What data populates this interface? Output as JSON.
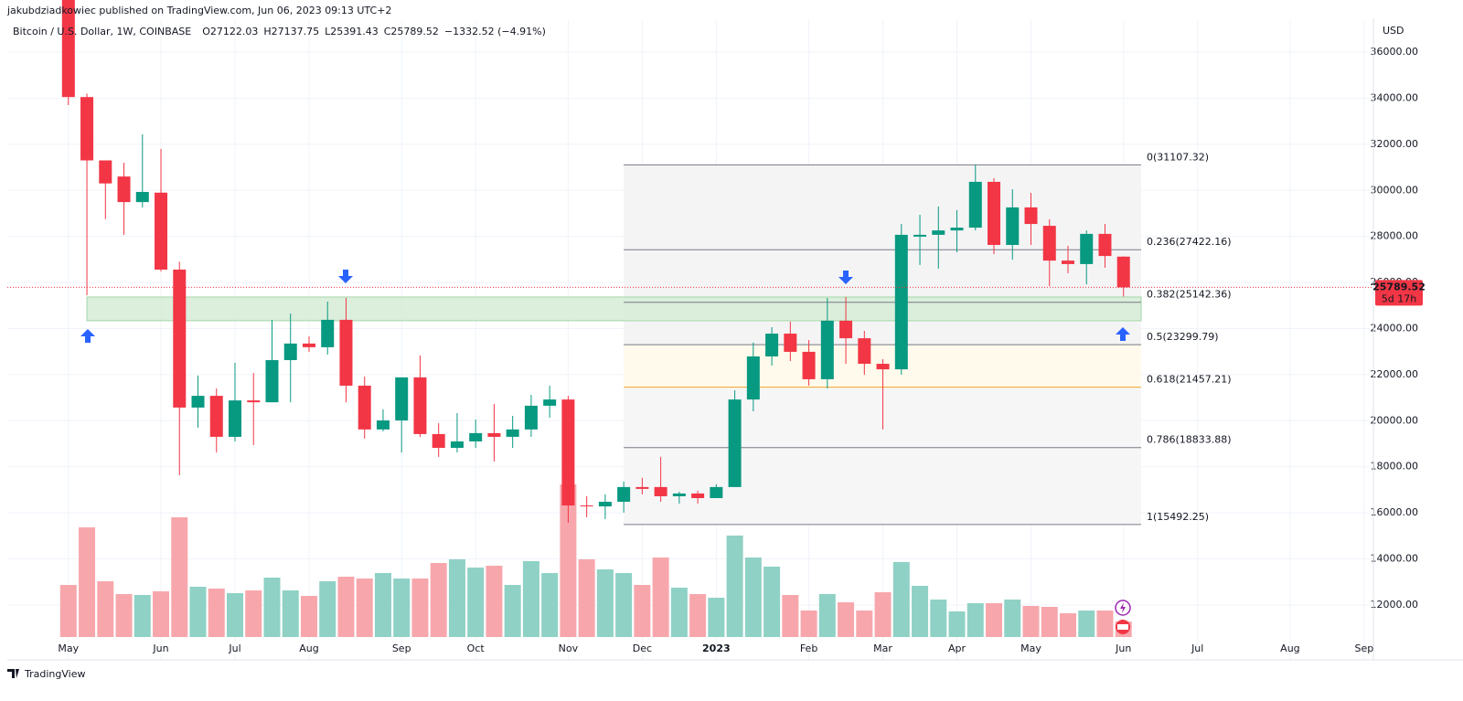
{
  "header": {
    "publisher": "jakubdziadkowiec published on TradingView.com, Jun 06, 2023 09:13 UTC+2",
    "brand": "TradingView"
  },
  "chart_data": {
    "type": "candlestick",
    "symbol": "Bitcoin / U.S. Dollar, 1W, COINBASE",
    "legend_values": [
      "O27122.03",
      "H27137.75",
      "L25391.43",
      "C25789.52",
      "−1332.52 (−4.91%)"
    ],
    "currency": "USD",
    "up_color": "#089981",
    "down_color": "#f23645",
    "up_volume_color": "#8fd1c5",
    "down_volume_color": "#f7a7ac",
    "open": [
      38470,
      34050,
      31300,
      30600,
      29490,
      29900,
      26560,
      20570,
      21080,
      19300,
      20880,
      20800,
      22630,
      23350,
      23190,
      24380,
      21520,
      19620,
      20010,
      21880,
      19420,
      18820,
      19100,
      19460,
      19300,
      19620,
      20650,
      20920,
      16320,
      16280,
      16480,
      17120,
      17120,
      16720,
      16840,
      16640,
      17120,
      20920,
      22790,
      23780,
      22990,
      21800,
      24340,
      23580,
      22470,
      22230,
      27990,
      28070,
      28260,
      28380,
      30370,
      27630,
      29260,
      28460,
      26950,
      26800,
      28110,
      27122.03
    ],
    "high": [
      39900,
      34200,
      31300,
      31200,
      32430,
      31800,
      26900,
      21960,
      21400,
      22510,
      22070,
      24380,
      24650,
      23660,
      25170,
      25330,
      21920,
      20490,
      21880,
      22830,
      19890,
      20330,
      20050,
      20730,
      20210,
      21120,
      21520,
      21080,
      16720,
      16800,
      17360,
      17520,
      18430,
      16920,
      16960,
      17240,
      21320,
      23390,
      24060,
      24300,
      23500,
      25330,
      25370,
      23900,
      22670,
      28540,
      28940,
      29300,
      29140,
      31120,
      30530,
      30050,
      29890,
      28740,
      27590,
      28260,
      28540,
      27137.75
    ],
    "low": [
      33700,
      25450,
      28750,
      28070,
      29250,
      26480,
      17630,
      19700,
      18620,
      19100,
      18940,
      20800,
      20800,
      22990,
      22870,
      20800,
      19220,
      19540,
      18620,
      19300,
      18430,
      18620,
      18820,
      18230,
      18820,
      19300,
      20130,
      15570,
      15810,
      15730,
      16010,
      16800,
      16480,
      16400,
      16400,
      16640,
      17120,
      20410,
      22390,
      22590,
      21520,
      21400,
      22470,
      21990,
      19620,
      21990,
      26760,
      26600,
      27310,
      28260,
      27230,
      26990,
      27630,
      25840,
      26400,
      25920,
      26640,
      25391.43
    ],
    "close": [
      34050,
      31300,
      30300,
      29490,
      29930,
      26560,
      20570,
      21080,
      19300,
      20880,
      20800,
      22630,
      23350,
      23190,
      24380,
      21520,
      19620,
      20010,
      21880,
      19420,
      18820,
      19100,
      19460,
      19300,
      19620,
      20650,
      20920,
      16320,
      16280,
      16480,
      17120,
      17040,
      16720,
      16840,
      16640,
      17120,
      20920,
      22790,
      23780,
      22990,
      21800,
      24340,
      23580,
      22470,
      22230,
      28070,
      28070,
      28260,
      28380,
      30370,
      27630,
      29260,
      28540,
      26950,
      26800,
      28110,
      27150,
      25789.52
    ],
    "volume": [
      57,
      120,
      61,
      47,
      46,
      50,
      131,
      55,
      53,
      48,
      51,
      65,
      51,
      45,
      61,
      66,
      64,
      70,
      64,
      64,
      81,
      85,
      76,
      78,
      57,
      83,
      70,
      167,
      85,
      74,
      70,
      57,
      87,
      54,
      47,
      43,
      111,
      87,
      77,
      46,
      29,
      47,
      38,
      29,
      49,
      82,
      56,
      41,
      28,
      37,
      37,
      41,
      34,
      33,
      26,
      29,
      29,
      17
    ],
    "last_price_label": "25789.52",
    "countdown": "5d 17h",
    "ylim": [
      10490,
      37390
    ],
    "yticks": [
      {
        "value": 12000,
        "label": "12000.00"
      },
      {
        "value": 14000,
        "label": "14000.00"
      },
      {
        "value": 16000,
        "label": "16000.00"
      },
      {
        "value": 18000,
        "label": "18000.00"
      },
      {
        "value": 20000,
        "label": "20000.00"
      },
      {
        "value": 22000,
        "label": "22000.00"
      },
      {
        "value": 24000,
        "label": "24000.00"
      },
      {
        "value": 26000,
        "label": "26000.00"
      },
      {
        "value": 28000,
        "label": "28000.00"
      },
      {
        "value": 30000,
        "label": "30000.00"
      },
      {
        "value": 32000,
        "label": "32000.00"
      },
      {
        "value": 34000,
        "label": "34000.00"
      },
      {
        "value": 36000,
        "label": "36000.00"
      }
    ],
    "xlim": [
      -3.3,
      70.4
    ],
    "xticks": [
      {
        "value": 0,
        "label": "May"
      },
      {
        "value": 5,
        "label": "Jun"
      },
      {
        "value": 9,
        "label": "Jul"
      },
      {
        "value": 13,
        "label": "Aug"
      },
      {
        "value": 18,
        "label": "Sep"
      },
      {
        "value": 22,
        "label": "Oct"
      },
      {
        "value": 27,
        "label": "Nov"
      },
      {
        "value": 31,
        "label": "Dec"
      },
      {
        "value": 35,
        "label": "2023"
      },
      {
        "value": 40,
        "label": "Feb"
      },
      {
        "value": 44,
        "label": "Mar"
      },
      {
        "value": 48,
        "label": "Apr"
      },
      {
        "value": 52,
        "label": "May"
      },
      {
        "value": 57,
        "label": "Jun"
      },
      {
        "value": 61,
        "label": "Jul"
      },
      {
        "value": 66,
        "label": "Aug"
      },
      {
        "value": 70,
        "label": "Sep"
      }
    ],
    "grid": true,
    "zone": {
      "top": 25370,
      "bottom": 24340,
      "color": "#d5ecd6"
    },
    "fib_levels": [
      {
        "value": 31107.32,
        "label": "0(31107.32)",
        "color": "#787b86",
        "fill": "#f4f4f5"
      },
      {
        "value": 27422.16,
        "label": "0.236(27422.16)",
        "color": "#787b86",
        "fill": "#f4f4f5"
      },
      {
        "value": 25142.36,
        "label": "0.382(25142.36)",
        "color": "#787b86",
        "fill": "#f4f4f5"
      },
      {
        "value": 23299.79,
        "label": "0.5(23299.79)",
        "color": "#787b86",
        "fill": "#fffaec"
      },
      {
        "value": 21457.21,
        "label": "0.618(21457.21)",
        "color": "#f5a623",
        "fill": "#f6f6f7"
      },
      {
        "value": 18833.88,
        "label": "0.786(18833.88)",
        "color": "#787b86",
        "fill": "#f6f6f7"
      },
      {
        "value": 15492.25,
        "label": "1(15492.25)",
        "color": "#787b86",
        "fill": "none"
      }
    ]
  }
}
